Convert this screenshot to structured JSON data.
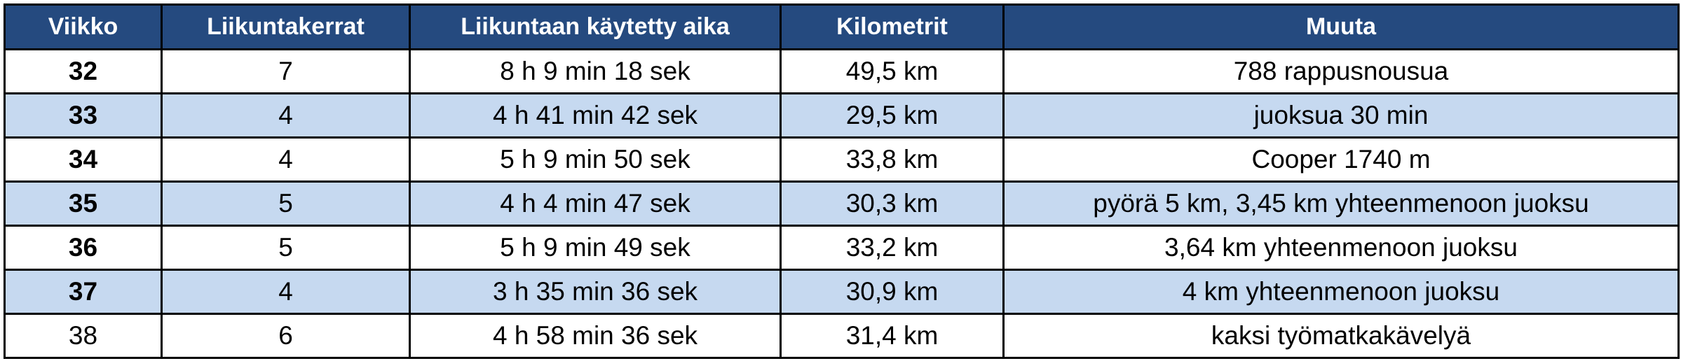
{
  "table": {
    "header": [
      "Viikko",
      "Liikuntakerrat",
      "Liikuntaan käytetty aika",
      "Kilometrit",
      "Muuta"
    ],
    "rows": [
      [
        "32",
        "7",
        "8 h 9 min 18 sek",
        "49,5 km",
        "788 rappusnousua"
      ],
      [
        "33",
        "4",
        "4 h 41 min 42 sek",
        "29,5 km",
        "juoksua 30 min"
      ],
      [
        "34",
        "4",
        "5 h 9 min 50 sek",
        "33,8 km",
        "Cooper 1740 m"
      ],
      [
        "35",
        "5",
        "4 h 4 min 47 sek",
        "30,3 km",
        "pyörä 5 km, 3,45 km yhteenmenoon juoksu"
      ],
      [
        "36",
        "5",
        "5 h 9 min 49 sek",
        "33,2 km",
        "3,64 km yhteenmenoon juoksu"
      ],
      [
        "37",
        "4",
        "3 h 35 min 36 sek",
        "30,9 km",
        "4 km yhteenmenoon juoksu"
      ],
      [
        "38",
        "6",
        "4 h 58 min 36 sek",
        "31,4 km",
        "kaksi työmatkakävelyä"
      ]
    ]
  }
}
